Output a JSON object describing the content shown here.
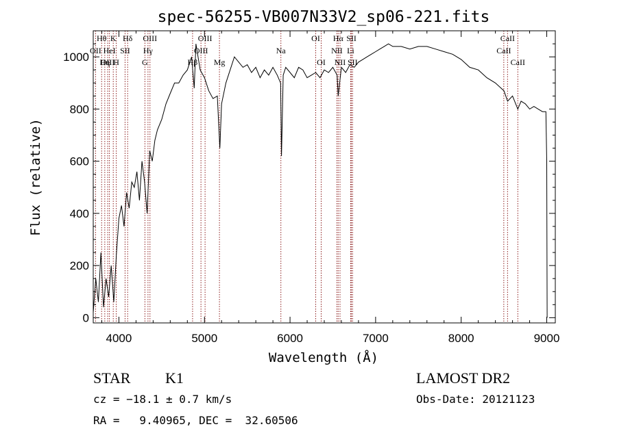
{
  "chart_data": {
    "type": "line",
    "title": "spec-56255-VB007N33V2_sp06-221.fits",
    "xlabel": "Wavelength (Å)",
    "ylabel": "Flux (relative)",
    "xlim": [
      3700,
      9100
    ],
    "ylim": [
      -20,
      1100
    ],
    "xticks": [
      4000,
      5000,
      6000,
      7000,
      8000,
      9000
    ],
    "yticks": [
      0,
      200,
      400,
      600,
      800,
      1000
    ],
    "grid": false,
    "line_color": "#000000",
    "marker_color": "#8b1a1a",
    "series": [
      {
        "x": [
          3700,
          3730,
          3760,
          3790,
          3820,
          3850,
          3880,
          3910,
          3940,
          3970,
          4000,
          4030,
          4060,
          4090,
          4120,
          4150,
          4180,
          4210,
          4240,
          4270,
          4300,
          4330,
          4360,
          4390,
          4420,
          4450,
          4500,
          4550,
          4600,
          4650,
          4700,
          4750,
          4800,
          4850,
          4880,
          4900,
          4950,
          5000,
          5050,
          5100,
          5150,
          5180,
          5200,
          5250,
          5300,
          5350,
          5400,
          5450,
          5500,
          5550,
          5600,
          5650,
          5700,
          5750,
          5800,
          5850,
          5890,
          5900,
          5920,
          5950,
          6000,
          6050,
          6100,
          6150,
          6200,
          6250,
          6300,
          6350,
          6400,
          6450,
          6500,
          6550,
          6563,
          6600,
          6650,
          6700,
          6750,
          6800,
          6850,
          6900,
          6950,
          7000,
          7050,
          7100,
          7150,
          7200,
          7300,
          7400,
          7500,
          7600,
          7700,
          7800,
          7900,
          8000,
          8100,
          8200,
          8300,
          8400,
          8500,
          8542,
          8600,
          8662,
          8700,
          8750,
          8800,
          8850,
          8900,
          8950,
          8990,
          9000,
          9005
        ],
        "y": [
          20,
          150,
          60,
          250,
          40,
          150,
          80,
          200,
          60,
          240,
          380,
          430,
          350,
          480,
          420,
          520,
          500,
          560,
          450,
          600,
          520,
          400,
          640,
          600,
          680,
          720,
          760,
          820,
          860,
          900,
          900,
          930,
          950,
          1000,
          880,
          1050,
          950,
          920,
          870,
          840,
          850,
          650,
          820,
          900,
          950,
          1000,
          980,
          960,
          970,
          940,
          960,
          920,
          950,
          930,
          960,
          930,
          900,
          620,
          930,
          960,
          940,
          920,
          960,
          950,
          920,
          930,
          940,
          920,
          950,
          940,
          960,
          930,
          850,
          960,
          940,
          970,
          960,
          980,
          990,
          1000,
          1010,
          1020,
          1030,
          1040,
          1050,
          1040,
          1040,
          1030,
          1040,
          1040,
          1030,
          1020,
          1010,
          990,
          960,
          950,
          920,
          900,
          870,
          830,
          850,
          800,
          830,
          820,
          800,
          810,
          800,
          790,
          790,
          600,
          0
        ]
      }
    ],
    "lines": [
      {
        "name": "Hθ",
        "x": 3798,
        "row": 0
      },
      {
        "name": "OII",
        "x": 3727,
        "row": 1
      },
      {
        "name": "OIII",
        "x": 3869,
        "row": 2
      },
      {
        "name": "Hη",
        "x": 3835,
        "row": 2
      },
      {
        "name": "K",
        "x": 3934,
        "row": 0
      },
      {
        "name": "HeI",
        "x": 3889,
        "row": 1
      },
      {
        "name": "H",
        "x": 3969,
        "row": 2
      },
      {
        "name": "Hδ",
        "x": 4102,
        "row": 0
      },
      {
        "name": "SII",
        "x": 4072,
        "row": 1
      },
      {
        "name": "OIII",
        "x": 4363,
        "row": 0
      },
      {
        "name": "Hγ",
        "x": 4340,
        "row": 1
      },
      {
        "name": "G",
        "x": 4304,
        "row": 2
      },
      {
        "name": "OIII",
        "x": 5007,
        "row": 0
      },
      {
        "name": "OIII",
        "x": 4959,
        "row": 1
      },
      {
        "name": "Hβ",
        "x": 4861,
        "row": 2
      },
      {
        "name": "Mg",
        "x": 5175,
        "row": 2
      },
      {
        "name": "Na",
        "x": 5893,
        "row": 1
      },
      {
        "name": "OI",
        "x": 6300,
        "row": 0
      },
      {
        "name": "OI",
        "x": 6364,
        "row": 2
      },
      {
        "name": "Hα",
        "x": 6563,
        "row": 0
      },
      {
        "name": "SII",
        "x": 6717,
        "row": 0
      },
      {
        "name": "NII",
        "x": 6548,
        "row": 1
      },
      {
        "name": "Li",
        "x": 6708,
        "row": 1
      },
      {
        "name": "NII",
        "x": 6584,
        "row": 2
      },
      {
        "name": "SII",
        "x": 6731,
        "row": 2
      },
      {
        "name": "CaII",
        "x": 8542,
        "row": 0
      },
      {
        "name": "CaII",
        "x": 8498,
        "row": 1
      },
      {
        "name": "CaII",
        "x": 8662,
        "row": 2
      }
    ]
  },
  "footer": {
    "class": "STAR",
    "subclass": "K1",
    "survey": "LAMOST DR2",
    "cz": "cz = −18.1 ± 0.7 km/s",
    "obs_date": "Obs-Date: 20121123",
    "coords": "RA =   9.40965, DEC =  32.60506"
  }
}
